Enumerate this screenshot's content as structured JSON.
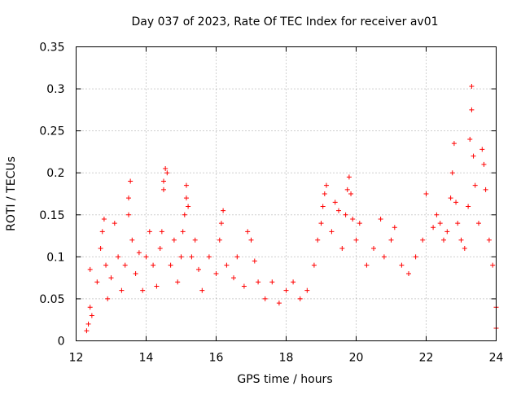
{
  "chart_data": {
    "type": "scatter",
    "title": "Day 037 of 2023, Rate Of TEC Index for receiver av01",
    "xlabel": "GPS time / hours",
    "ylabel": "ROTI / TECUs",
    "xlim": [
      12,
      24
    ],
    "ylim": [
      0,
      0.35
    ],
    "xticks": [
      12,
      14,
      16,
      18,
      20,
      22,
      24
    ],
    "yticks": [
      0,
      0.05,
      0.1,
      0.15,
      0.2,
      0.25,
      0.3,
      0.35
    ],
    "xtick_labels": [
      "12",
      "14",
      "16",
      "18",
      "20",
      "22",
      "24"
    ],
    "ytick_labels": [
      "0",
      "0.05",
      "0.1",
      "0.15",
      "0.2",
      "0.25",
      "0.3",
      "0.35"
    ],
    "grid": true,
    "marker": "+",
    "color": "#ff0000",
    "series": [
      {
        "name": "ROTI",
        "points": [
          [
            12.3,
            0.012
          ],
          [
            12.35,
            0.02
          ],
          [
            12.4,
            0.04
          ],
          [
            12.4,
            0.085
          ],
          [
            12.45,
            0.03
          ],
          [
            12.6,
            0.07
          ],
          [
            12.7,
            0.11
          ],
          [
            12.75,
            0.13
          ],
          [
            12.8,
            0.145
          ],
          [
            12.85,
            0.09
          ],
          [
            12.9,
            0.05
          ],
          [
            13.0,
            0.075
          ],
          [
            13.1,
            0.14
          ],
          [
            13.2,
            0.1
          ],
          [
            13.3,
            0.06
          ],
          [
            13.4,
            0.09
          ],
          [
            13.5,
            0.15
          ],
          [
            13.5,
            0.17
          ],
          [
            13.55,
            0.19
          ],
          [
            13.6,
            0.12
          ],
          [
            13.7,
            0.08
          ],
          [
            13.8,
            0.105
          ],
          [
            13.9,
            0.06
          ],
          [
            14.0,
            0.1
          ],
          [
            14.1,
            0.13
          ],
          [
            14.2,
            0.09
          ],
          [
            14.3,
            0.065
          ],
          [
            14.4,
            0.11
          ],
          [
            14.45,
            0.13
          ],
          [
            14.5,
            0.18
          ],
          [
            14.5,
            0.19
          ],
          [
            14.55,
            0.205
          ],
          [
            14.6,
            0.2
          ],
          [
            14.7,
            0.09
          ],
          [
            14.8,
            0.12
          ],
          [
            14.9,
            0.07
          ],
          [
            15.0,
            0.1
          ],
          [
            15.05,
            0.13
          ],
          [
            15.1,
            0.15
          ],
          [
            15.15,
            0.17
          ],
          [
            15.15,
            0.185
          ],
          [
            15.2,
            0.16
          ],
          [
            15.3,
            0.1
          ],
          [
            15.4,
            0.12
          ],
          [
            15.5,
            0.085
          ],
          [
            15.6,
            0.06
          ],
          [
            15.8,
            0.1
          ],
          [
            16.0,
            0.08
          ],
          [
            16.1,
            0.12
          ],
          [
            16.15,
            0.14
          ],
          [
            16.2,
            0.155
          ],
          [
            16.3,
            0.09
          ],
          [
            16.5,
            0.075
          ],
          [
            16.6,
            0.1
          ],
          [
            16.8,
            0.065
          ],
          [
            16.9,
            0.13
          ],
          [
            17.0,
            0.12
          ],
          [
            17.1,
            0.095
          ],
          [
            17.2,
            0.07
          ],
          [
            17.4,
            0.05
          ],
          [
            17.6,
            0.07
          ],
          [
            17.8,
            0.045
          ],
          [
            18.0,
            0.06
          ],
          [
            18.2,
            0.07
          ],
          [
            18.4,
            0.05
          ],
          [
            18.6,
            0.06
          ],
          [
            18.8,
            0.09
          ],
          [
            18.9,
            0.12
          ],
          [
            19.0,
            0.14
          ],
          [
            19.05,
            0.16
          ],
          [
            19.1,
            0.175
          ],
          [
            19.15,
            0.185
          ],
          [
            19.3,
            0.13
          ],
          [
            19.4,
            0.165
          ],
          [
            19.5,
            0.155
          ],
          [
            19.6,
            0.11
          ],
          [
            19.7,
            0.15
          ],
          [
            19.75,
            0.18
          ],
          [
            19.8,
            0.195
          ],
          [
            19.85,
            0.175
          ],
          [
            19.9,
            0.145
          ],
          [
            20.0,
            0.12
          ],
          [
            20.1,
            0.14
          ],
          [
            20.3,
            0.09
          ],
          [
            20.5,
            0.11
          ],
          [
            20.7,
            0.145
          ],
          [
            20.8,
            0.1
          ],
          [
            21.0,
            0.12
          ],
          [
            21.1,
            0.135
          ],
          [
            21.3,
            0.09
          ],
          [
            21.5,
            0.08
          ],
          [
            21.7,
            0.1
          ],
          [
            21.9,
            0.12
          ],
          [
            22.0,
            0.175
          ],
          [
            22.2,
            0.135
          ],
          [
            22.3,
            0.15
          ],
          [
            22.4,
            0.14
          ],
          [
            22.5,
            0.12
          ],
          [
            22.6,
            0.13
          ],
          [
            22.7,
            0.17
          ],
          [
            22.75,
            0.2
          ],
          [
            22.8,
            0.235
          ],
          [
            22.85,
            0.165
          ],
          [
            22.9,
            0.14
          ],
          [
            23.0,
            0.12
          ],
          [
            23.1,
            0.11
          ],
          [
            23.2,
            0.16
          ],
          [
            23.25,
            0.24
          ],
          [
            23.3,
            0.275
          ],
          [
            23.3,
            0.303
          ],
          [
            23.35,
            0.22
          ],
          [
            23.4,
            0.185
          ],
          [
            23.5,
            0.14
          ],
          [
            23.6,
            0.228
          ],
          [
            23.65,
            0.21
          ],
          [
            23.7,
            0.18
          ],
          [
            23.8,
            0.12
          ],
          [
            23.9,
            0.09
          ],
          [
            24.0,
            0.04
          ],
          [
            24.0,
            0.015
          ]
        ]
      }
    ]
  }
}
